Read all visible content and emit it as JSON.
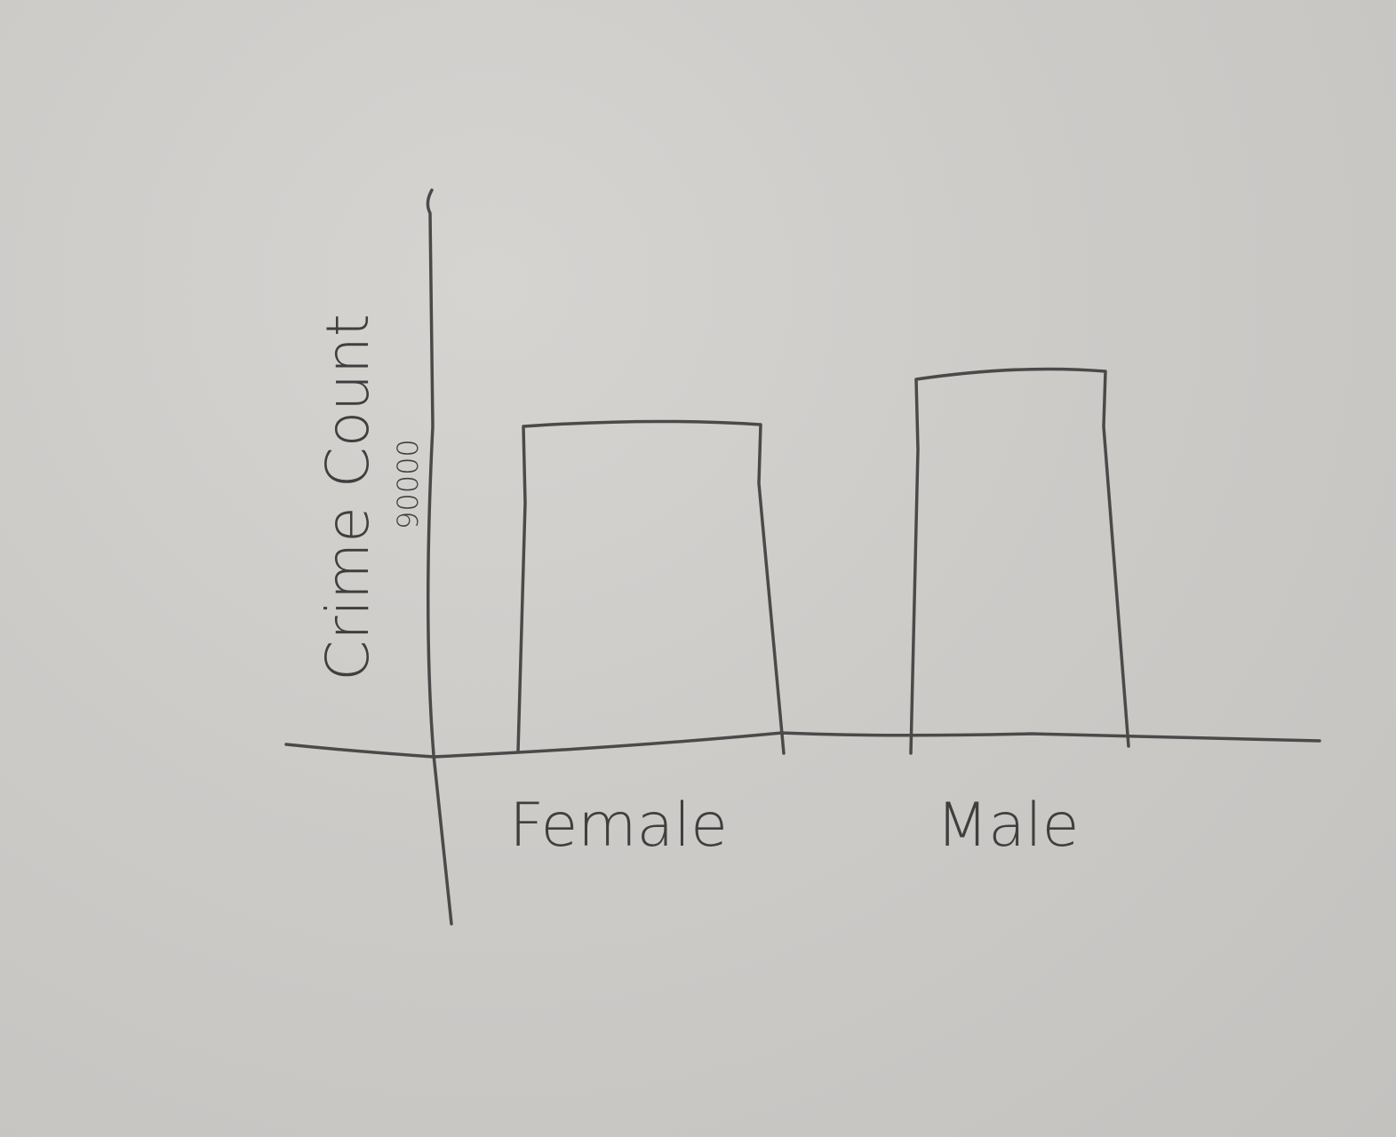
{
  "chart_data": {
    "type": "bar",
    "title": "",
    "xlabel": "",
    "ylabel": "Crime Count",
    "categories": [
      "Female",
      "Male"
    ],
    "values": [
      90000,
      105000
    ],
    "yticks": [
      {
        "value": 90000,
        "label": "90000"
      }
    ],
    "ylim": [
      0,
      135000
    ],
    "grid": false,
    "legend": "none",
    "colors": {
      "paper": "#cdcbc8",
      "pencil": "#4a4a4a"
    }
  }
}
